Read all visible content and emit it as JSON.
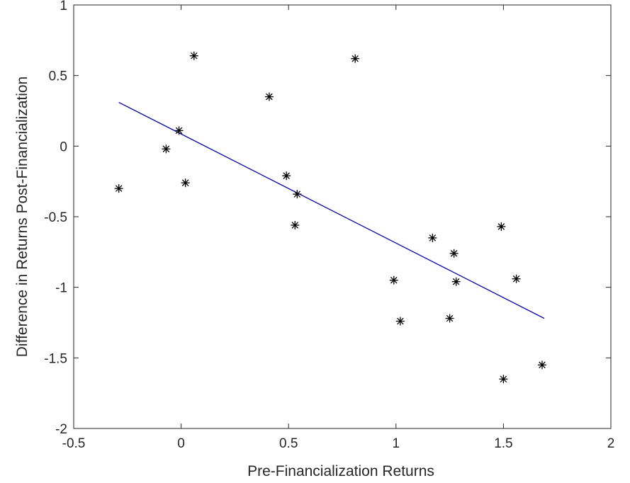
{
  "chart_data": {
    "type": "scatter",
    "title": "",
    "xlabel": "Pre-Financialization Returns",
    "ylabel": "Difference in Returns Post-Financialization",
    "xlim": [
      -0.5,
      2
    ],
    "ylim": [
      -2,
      1
    ],
    "xticks": [
      "-0.5",
      "0",
      "0.5",
      "1",
      "1.5",
      "2"
    ],
    "yticks": [
      "-2",
      "-1.5",
      "-1",
      "-0.5",
      "0",
      "0.5",
      "1"
    ],
    "grid": false,
    "legend": "none",
    "series": [
      {
        "marker": "asterisk",
        "color": "#000000",
        "points": [
          {
            "x": -0.29,
            "y": -0.3
          },
          {
            "x": -0.07,
            "y": -0.02
          },
          {
            "x": -0.01,
            "y": 0.11
          },
          {
            "x": 0.02,
            "y": -0.26
          },
          {
            "x": 0.06,
            "y": 0.64
          },
          {
            "x": 0.41,
            "y": 0.35
          },
          {
            "x": 0.49,
            "y": -0.21
          },
          {
            "x": 0.53,
            "y": -0.56
          },
          {
            "x": 0.54,
            "y": -0.34
          },
          {
            "x": 0.81,
            "y": 0.62
          },
          {
            "x": 0.99,
            "y": -0.95
          },
          {
            "x": 1.02,
            "y": -1.24
          },
          {
            "x": 1.17,
            "y": -0.65
          },
          {
            "x": 1.25,
            "y": -1.22
          },
          {
            "x": 1.27,
            "y": -0.76
          },
          {
            "x": 1.28,
            "y": -0.96
          },
          {
            "x": 1.49,
            "y": -0.57
          },
          {
            "x": 1.5,
            "y": -1.65
          },
          {
            "x": 1.56,
            "y": -0.94
          },
          {
            "x": 1.68,
            "y": -1.55
          }
        ]
      }
    ],
    "fit_line": {
      "color": "#0000a8",
      "x": [
        -0.29,
        1.69
      ],
      "y": [
        0.31,
        -1.22
      ]
    }
  }
}
